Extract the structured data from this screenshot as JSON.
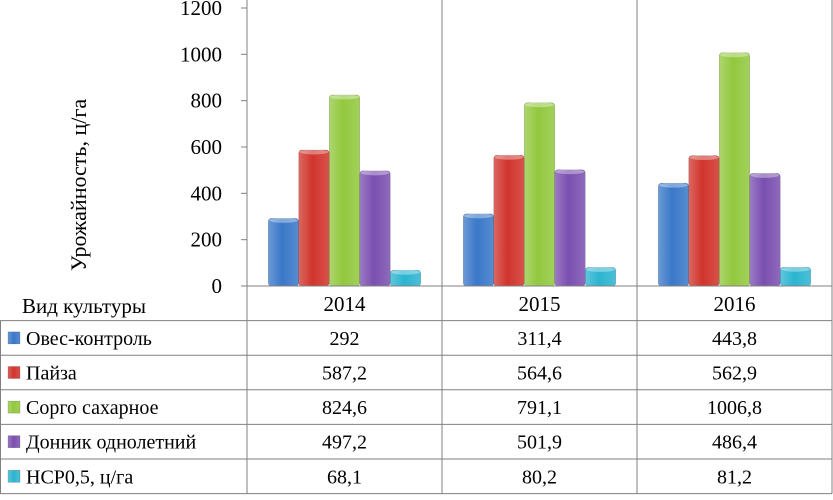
{
  "chart_data": {
    "type": "bar",
    "ylabel": "Урожайность, ц/га",
    "ylim": [
      0,
      1200
    ],
    "yticks": [
      "0",
      "200",
      "400",
      "600",
      "800",
      "1000",
      "1200"
    ],
    "categories": [
      "2014",
      "2015",
      "2016"
    ],
    "table_header": "Вид культуры",
    "grid": false,
    "legend": "data table",
    "series": [
      {
        "name": "Овес-контроль",
        "color": "#3a78c8",
        "values": [
          292,
          311.4,
          443.8
        ],
        "labels": [
          "292",
          "311,4",
          "443,8"
        ]
      },
      {
        "name": "Пайза",
        "color": "#d0342c",
        "values": [
          587.2,
          564.6,
          562.9
        ],
        "labels": [
          "587,2",
          "564,6",
          "562,9"
        ]
      },
      {
        "name": "Сорго сахарное",
        "color": "#92c83e",
        "values": [
          824.6,
          791.1,
          1006.8
        ],
        "labels": [
          "824,6",
          "791,1",
          "1006,8"
        ]
      },
      {
        "name": "Донник однолетний",
        "color": "#7a4fb0",
        "values": [
          497.2,
          501.9,
          486.4
        ],
        "labels": [
          "497,2",
          "501,9",
          "486,4"
        ]
      },
      {
        "name": "НСР0,5,  ц/га",
        "color": "#2cb4d0",
        "values": [
          68.1,
          80.2,
          81.2
        ],
        "labels": [
          "68,1",
          "80,2",
          "81,2"
        ]
      }
    ]
  }
}
